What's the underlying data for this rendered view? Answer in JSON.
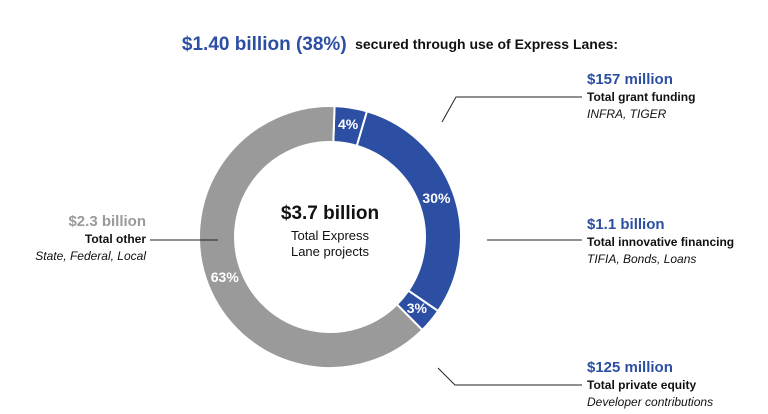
{
  "chart_data": {
    "type": "pie",
    "title": "$1.40 billion (38%)",
    "subtitle": "secured through use of Express Lanes:",
    "center_title": "$3.7 billion",
    "center_text": "Total Express Lane projects",
    "categories": [
      "Total grant funding",
      "Total innovative financing",
      "Total private equity",
      "Total other"
    ],
    "values": [
      4,
      30,
      3,
      63
    ],
    "value_labels": [
      "4%",
      "30%",
      "3%",
      "63%"
    ],
    "amounts": [
      "$157 million",
      "$1.1 billion",
      "$125 million",
      "$2.3 billion"
    ],
    "details": [
      "INFRA, TIGER",
      "TIFIA, Bonds, Loans",
      "Developer contributions",
      "State, Federal, Local"
    ],
    "colors": [
      "#2c4ea3",
      "#2c4ea3",
      "#2c4ea3",
      "#9a9a9a"
    ]
  }
}
